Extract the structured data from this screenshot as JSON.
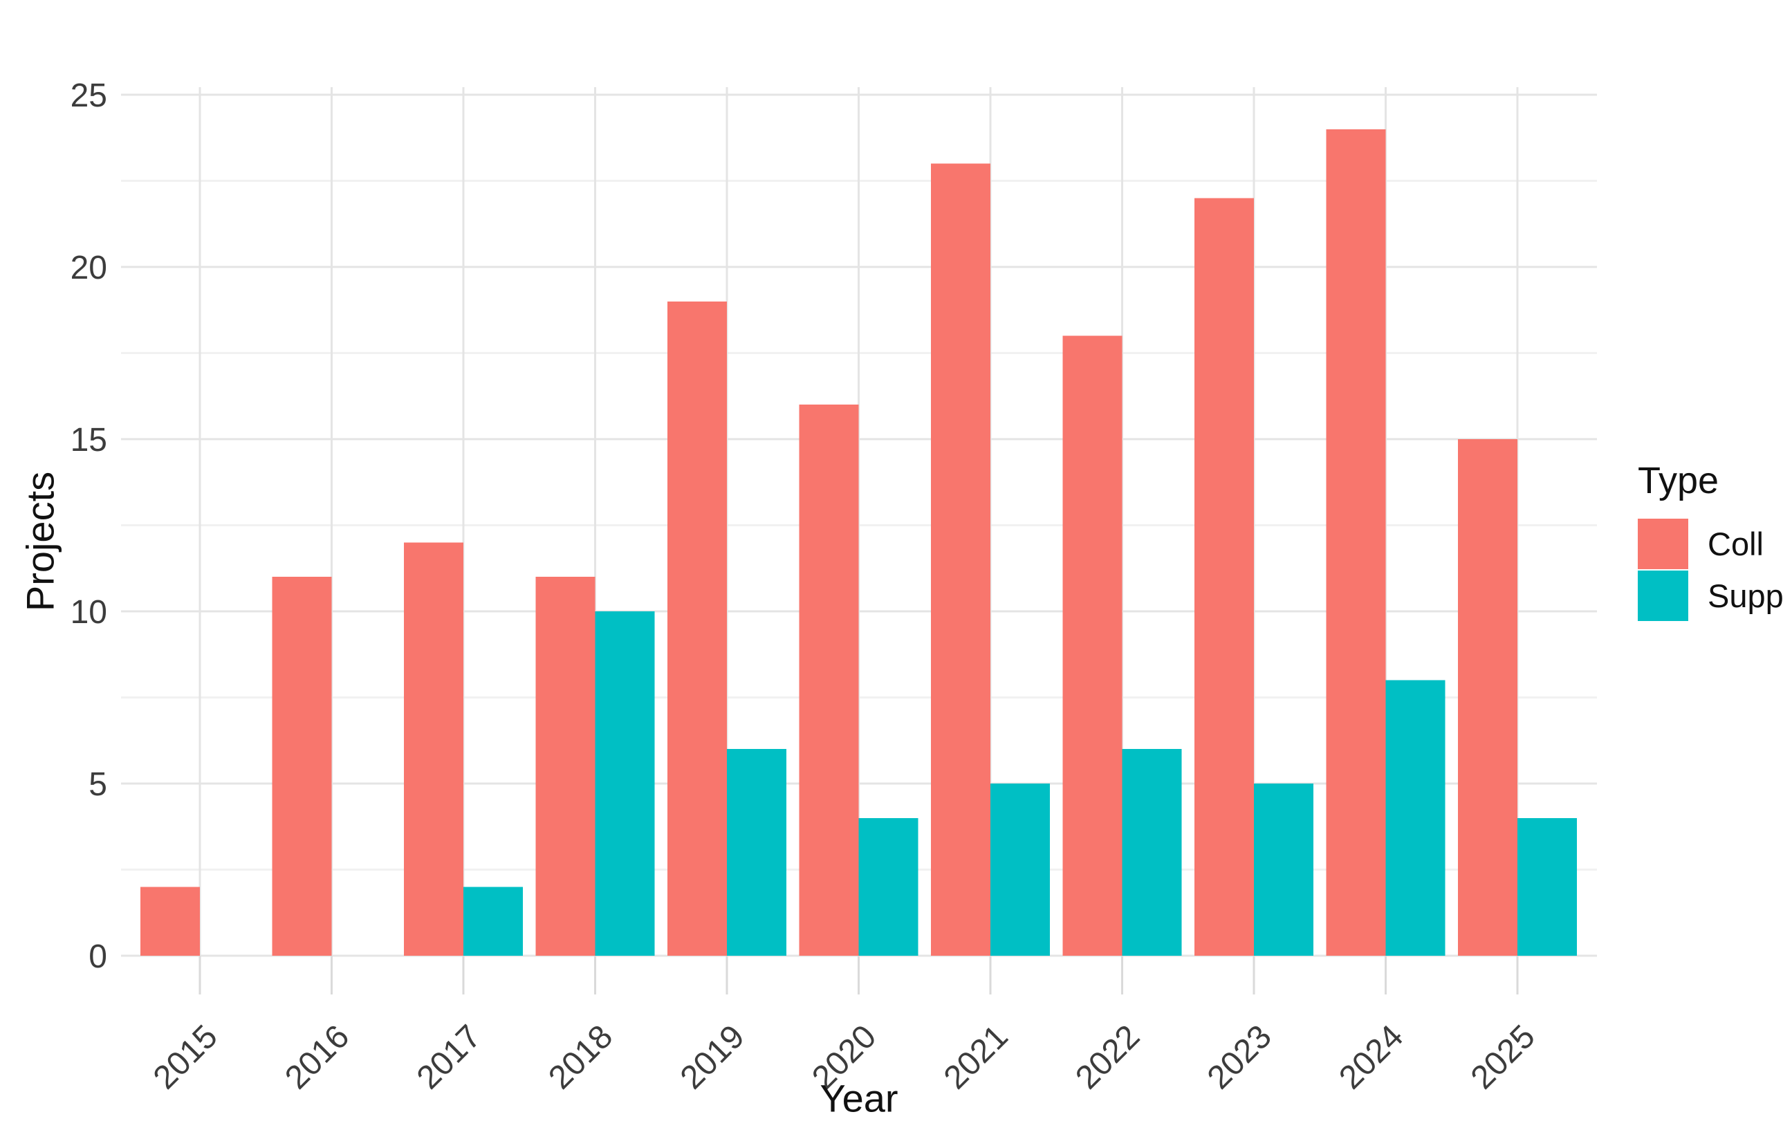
{
  "chart_data": {
    "type": "bar",
    "bar_mode": "grouped",
    "title": "",
    "categories": [
      "2015",
      "2016",
      "2017",
      "2018",
      "2019",
      "2020",
      "2021",
      "2022",
      "2023",
      "2024",
      "2025"
    ],
    "series": [
      {
        "name": "Coll",
        "color": "#F8766D",
        "values": [
          2,
          11,
          12,
          11,
          19,
          16,
          23,
          18,
          22,
          24,
          15
        ]
      },
      {
        "name": "Supp",
        "color": "#00BFC4",
        "values": [
          null,
          null,
          2,
          10,
          6,
          4,
          5,
          6,
          5,
          8,
          4
        ]
      }
    ],
    "xlabel": "Year",
    "ylabel": "Projects",
    "ylim": [
      0,
      25
    ],
    "yticks": [
      0,
      5,
      10,
      15,
      20,
      25
    ],
    "yticks_minor": [
      2.5,
      7.5,
      12.5,
      17.5,
      22.5
    ],
    "grid": "on",
    "legend_title": "Type",
    "legend_position": "right",
    "colors": {
      "background": "#FFFFFF",
      "grid_major": "#E4E4E4",
      "grid_minor": "#F1F1F1",
      "tick_mark": "#DADADA",
      "axis_text": "#3C3C3C",
      "axis_title": "#111111"
    }
  }
}
